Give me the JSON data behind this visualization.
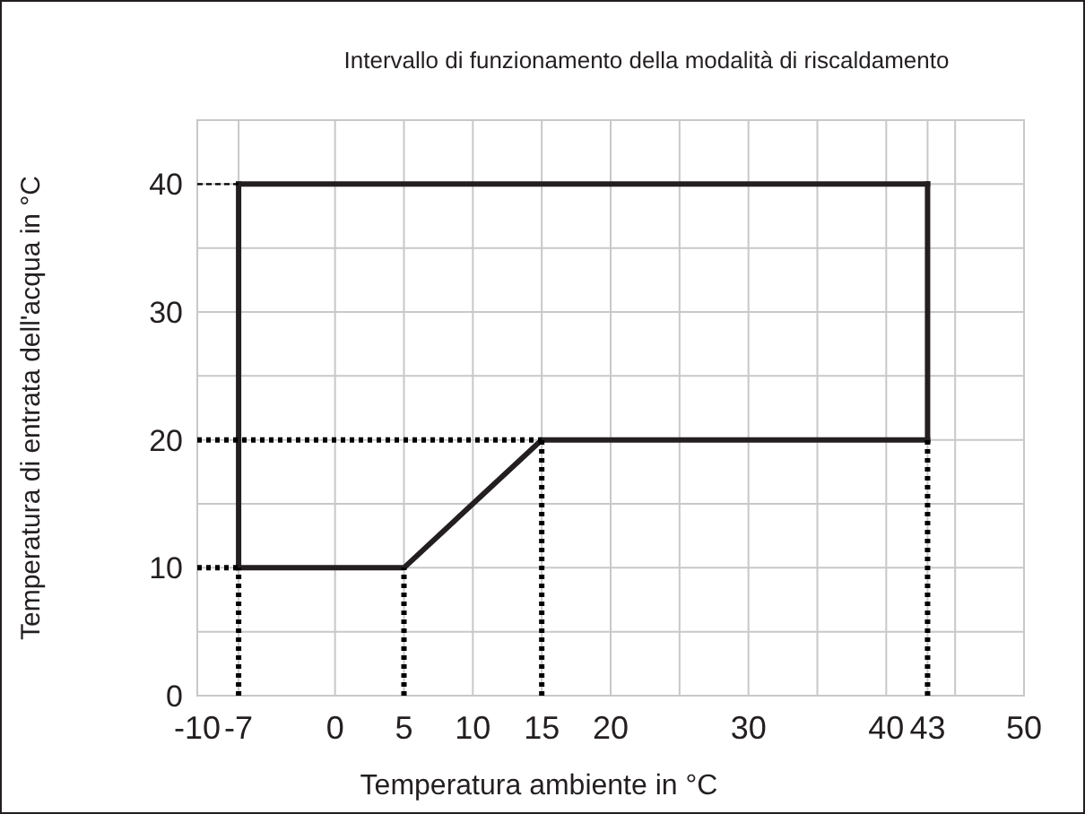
{
  "chart_data": {
    "type": "line",
    "title": "Intervallo di funzionamento della modalità di riscaldamento",
    "xlabel": "Temperatura ambiente in °C",
    "ylabel": "Temperatura di entrata dell'acqua in °C",
    "xlim": [
      -10,
      50
    ],
    "xticks": [
      -10,
      -7,
      0,
      5,
      10,
      15,
      20,
      {
        "value": 25,
        "label": null
      },
      30,
      {
        "value": 35,
        "label": null
      },
      40,
      43,
      {
        "value": 45,
        "label": null
      },
      50
    ],
    "ylim": [
      0,
      45
    ],
    "yticks": [
      0,
      {
        "value": 5,
        "label": null
      },
      10,
      {
        "value": 15,
        "label": null
      },
      20,
      {
        "value": 25,
        "label": null
      },
      30,
      {
        "value": 35,
        "label": null
      },
      40,
      {
        "value": 45,
        "label": null
      }
    ],
    "grid": true,
    "series": [
      {
        "color": "#231f20",
        "line_style": "solid",
        "x": [
          -7,
          5,
          15,
          43
        ],
        "values": [
          10,
          10,
          20,
          20
        ]
      },
      {
        "color": "#231f20",
        "line_style": "solid",
        "x": [
          -7,
          43
        ],
        "values": [
          40,
          40
        ]
      },
      {
        "color": "#231f20",
        "line_style": "solid",
        "x": [
          -7,
          -7
        ],
        "values": [
          10,
          40
        ]
      },
      {
        "color": "#231f20",
        "line_style": "solid",
        "x": [
          43,
          43
        ],
        "values": [
          20,
          40
        ]
      },
      {
        "color": "#000000",
        "line_style": "dotted",
        "x": [
          -7,
          -7
        ],
        "values": [
          0,
          10
        ]
      },
      {
        "color": "#000000",
        "line_style": "dotted",
        "x": [
          5,
          5
        ],
        "values": [
          0,
          10
        ]
      },
      {
        "color": "#000000",
        "line_style": "dotted",
        "x": [
          15,
          15
        ],
        "values": [
          0,
          20
        ]
      },
      {
        "color": "#000000",
        "line_style": "dotted",
        "x": [
          43,
          43
        ],
        "values": [
          0,
          20
        ]
      },
      {
        "color": "#000000",
        "line_style": "dotted",
        "x": [
          -10,
          -7
        ],
        "values": [
          10,
          10
        ]
      },
      {
        "color": "#000000",
        "line_style": "dotted",
        "x": [
          -10,
          15
        ],
        "values": [
          20,
          20
        ]
      },
      {
        "color": "#000000",
        "line_style": "dashed",
        "x": [
          -10,
          -7
        ],
        "values": [
          40,
          40
        ]
      }
    ]
  }
}
